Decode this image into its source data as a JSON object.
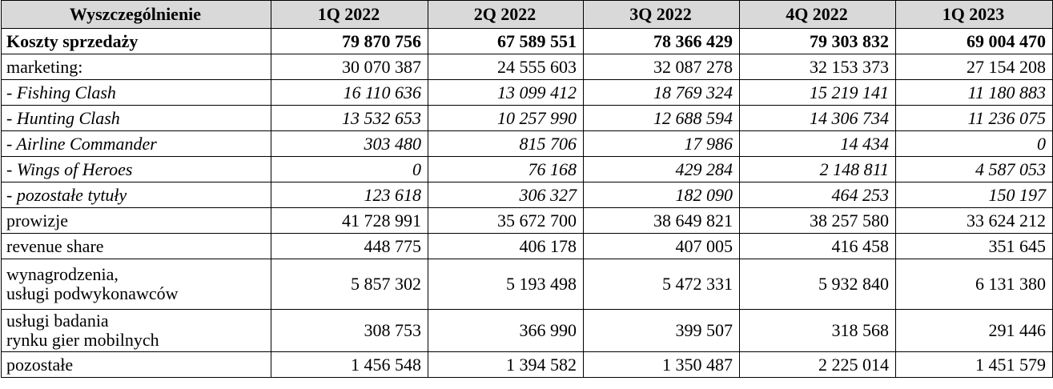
{
  "table": {
    "header": [
      "Wyszczególnienie",
      "1Q 2022",
      "2Q 2022",
      "3Q 2022",
      "4Q 2022",
      "1Q 2023"
    ],
    "rows": [
      {
        "label": "Koszty sprzedaży",
        "values": [
          "79 870 756",
          "67 589 551",
          "78 366 429",
          "79 303 832",
          "69 004 470"
        ]
      },
      {
        "label": "marketing:",
        "values": [
          "30 070 387",
          "24 555 603",
          "32 087 278",
          "32 153 373",
          "27 154 208"
        ]
      },
      {
        "label": "- Fishing Clash",
        "values": [
          "16 110 636",
          "13 099 412",
          "18 769 324",
          "15 219 141",
          "11 180 883"
        ]
      },
      {
        "label": "- Hunting Clash",
        "values": [
          "13 532 653",
          "10 257 990",
          "12 688 594",
          "14 306 734",
          "11 236 075"
        ]
      },
      {
        "label": "- Airline Commander",
        "values": [
          "303 480",
          "815 706",
          "17 986",
          "14 434",
          "0"
        ]
      },
      {
        "label": "- Wings of Heroes",
        "values": [
          "0",
          "76 168",
          "429 284",
          "2 148 811",
          "4 587 053"
        ]
      },
      {
        "label": "- pozostałe tytuły",
        "values": [
          "123 618",
          "306 327",
          "182 090",
          "464 253",
          "150 197"
        ]
      },
      {
        "label": "prowizje",
        "values": [
          "41 728 991",
          "35 672 700",
          "38 649 821",
          "38 257 580",
          "33 624 212"
        ]
      },
      {
        "label": "revenue share",
        "values": [
          "448 775",
          "406 178",
          "407 005",
          "416 458",
          "351 645"
        ]
      },
      {
        "label": "wynagrodzenia,\nusługi podwykonawców",
        "values": [
          "5 857 302",
          "5 193 498",
          "5 472 331",
          "5 932 840",
          "6 131 380"
        ]
      },
      {
        "label": "usługi badania\nrynku gier mobilnych",
        "values": [
          "308 753",
          "366 990",
          "399 507",
          "318 568",
          "291 446"
        ]
      },
      {
        "label": "pozostałe",
        "values": [
          "1 456 548",
          "1 394 582",
          "1 350 487",
          "2 225 014",
          "1 451 579"
        ]
      }
    ]
  }
}
